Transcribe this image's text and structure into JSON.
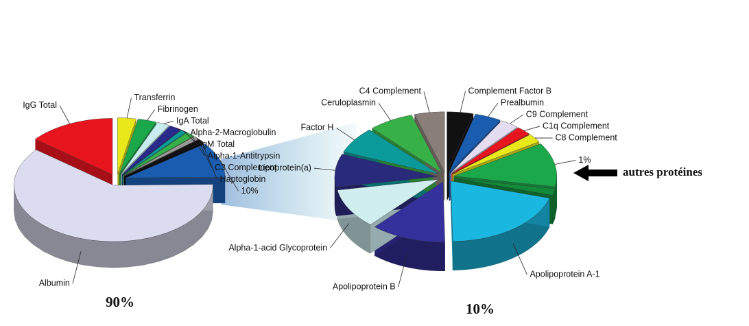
{
  "chart_data": [
    {
      "type": "pie",
      "categories": [
        "Transferrin",
        "Fibrinogen",
        "IgA Total",
        "Alpha-2-Macroglobulin",
        "IgM Total",
        "Alpha-1-Antitrypsin",
        "C3 Complement",
        "Haptoglobin",
        null,
        "Albumin",
        "IgG Total"
      ],
      "values": [
        3,
        3,
        2,
        2,
        1,
        1.5,
        1,
        1,
        10,
        60.5,
        14
      ],
      "value_labels": [
        null,
        null,
        null,
        null,
        null,
        null,
        null,
        null,
        "10%",
        null,
        null
      ],
      "colors": [
        "#e8e81a",
        "#1aa84a",
        "#c8ecf0",
        "#2a2a8c",
        "#0a9a9a",
        "#38b048",
        "#9a9a9a",
        "#111111",
        "#1a5cb0",
        "#dcdcf0",
        "#e8141e"
      ],
      "caption": "90%"
    },
    {
      "type": "pie",
      "categories": [
        "Complement Factor B",
        "Prealbumin",
        "C9 Complement",
        "C1q Complement",
        "C8 Complement",
        null,
        null,
        "Apolipoprotein A-1",
        "Apolipoprotein B",
        "Alpha-1-acid Glycoprotein",
        "Lipoprotein(a)",
        "Factor H",
        "Ceruloplasmin",
        "C4 Complement"
      ],
      "values": [
        0.35,
        0.35,
        0.25,
        0.2,
        0.2,
        1,
        0.15,
        1.7,
        1,
        0.9,
        0.75,
        0.6,
        0.6,
        0.4
      ],
      "value_labels": [
        null,
        null,
        null,
        null,
        null,
        "1%",
        null,
        null,
        null,
        null,
        null,
        null,
        null,
        null
      ],
      "colors": [
        "#111111",
        "#1a5cb0",
        "#e4dcf0",
        "#e8141e",
        "#e8e81a",
        "#1aa84a",
        "#128a3a",
        "#1ab8e0",
        "#34309c",
        "#d0eef0",
        "#2a2a7c",
        "#0a9a9a",
        "#38b048",
        "#8a7e78"
      ],
      "caption": "10%"
    }
  ],
  "annotation": "autres protéines"
}
